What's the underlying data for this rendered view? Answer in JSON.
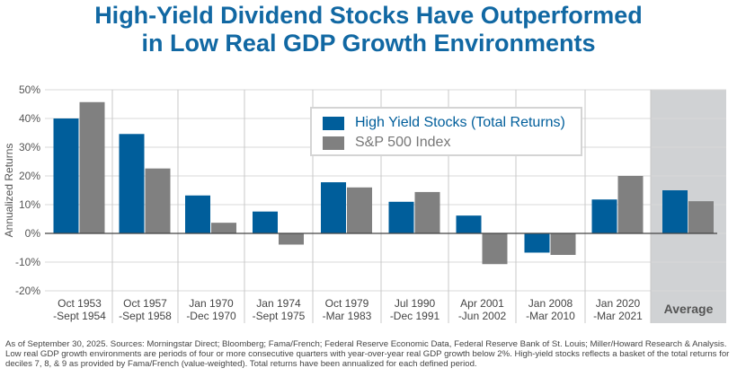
{
  "title_line1": "High-Yield Dividend Stocks Have Outperformed",
  "title_line2": "in Low Real GDP Growth Environments",
  "chart_data": {
    "type": "bar",
    "ylabel": "Annualized Returns",
    "ylim": [
      -20,
      50
    ],
    "yticks": [
      "50%",
      "40%",
      "30%",
      "20%",
      "10%",
      "0%",
      "-10%",
      "-20%"
    ],
    "ytick_values": [
      50,
      40,
      30,
      20,
      10,
      0,
      -10,
      -20
    ],
    "grid": true,
    "legend_position": "top-center",
    "categories": [
      [
        "Oct 1953",
        "-Sept 1954"
      ],
      [
        "Oct 1957",
        "-Sept 1958"
      ],
      [
        "Jan 1970",
        "-Dec 1970"
      ],
      [
        "Jan 1974",
        "-Sept 1975"
      ],
      [
        "Oct 1979",
        "-Mar 1983"
      ],
      [
        "Jul 1990",
        "-Dec 1991"
      ],
      [
        "Apr 2001",
        "-Jun 2002"
      ],
      [
        "Jan 2008",
        "-Mar 2010"
      ],
      [
        "Jan 2020",
        "-Mar 2021"
      ],
      [
        "Average"
      ]
    ],
    "series": [
      {
        "name": "High Yield Stocks (Total Returns)",
        "color": "#005e9b",
        "values": [
          40.0,
          34.6,
          13.2,
          7.6,
          17.8,
          11.0,
          6.2,
          -6.7,
          11.8,
          15.0
        ]
      },
      {
        "name": "S&P 500 Index",
        "color": "#808080",
        "values": [
          45.7,
          22.6,
          3.7,
          -3.9,
          16.0,
          14.4,
          -10.7,
          -7.5,
          20.0,
          11.2
        ]
      }
    ],
    "highlight_category": "Average",
    "highlight_color": "#d0d2d4"
  },
  "footnote": "As of September 30, 2025. Sources: Morningstar Direct; Bloomberg; Fama/French; Federal Reserve Economic Data, Federal Reserve Bank of St. Louis; Miller/Howard Research & Analysis. Low real GDP growth environments are periods of four or more consecutive quarters with year-over-year real GDP growth below 2%. High-yield stocks reflects a basket of the total returns for deciles 7, 8, & 9 as provided by Fama/French (value-weighted). Total returns have been annualized for each defined period."
}
